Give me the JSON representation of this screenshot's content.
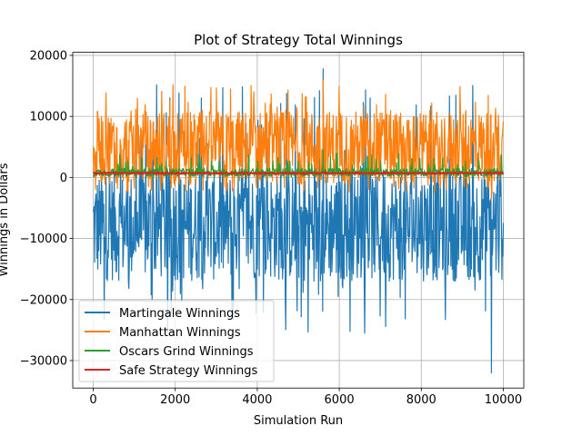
{
  "chart_data": {
    "type": "line",
    "title": "Plot of Strategy Total Winnings",
    "xlabel": "Simulation Run",
    "ylabel": "Winnings in Dollars",
    "xlim": [
      -500,
      10500
    ],
    "ylim": [
      -34500,
      20500
    ],
    "xticks": [
      0,
      2000,
      4000,
      6000,
      8000,
      10000
    ],
    "yticks": [
      -30000,
      -20000,
      -10000,
      0,
      10000,
      20000
    ],
    "xtick_labels": [
      "0",
      "2000",
      "4000",
      "6000",
      "8000",
      "10000"
    ],
    "ytick_labels": [
      "−30000",
      "−20000",
      "−10000",
      "0",
      "10000",
      "20000"
    ],
    "grid": true,
    "legend_position": "bottom-left",
    "x_range": [
      0,
      10000
    ],
    "series": [
      {
        "name": "Martingale Winnings",
        "color": "#1f77b4",
        "summary": {
          "min": -32000,
          "max": 17800,
          "typical_low": -17000,
          "typical_high": 1000
        }
      },
      {
        "name": "Manhattan Winnings",
        "color": "#ff7f0e",
        "summary": {
          "min": -3500,
          "max": 16000,
          "typical_low": -1000,
          "typical_high": 11000
        }
      },
      {
        "name": "Oscars Grind Winnings",
        "color": "#2ca02c",
        "summary": {
          "min": 0,
          "max": 4500,
          "typical_low": 200,
          "typical_high": 1500
        }
      },
      {
        "name": "Safe Strategy Winnings",
        "color": "#d62728",
        "summary": {
          "min": 500,
          "max": 900,
          "typical_low": 600,
          "typical_high": 800
        }
      }
    ]
  }
}
